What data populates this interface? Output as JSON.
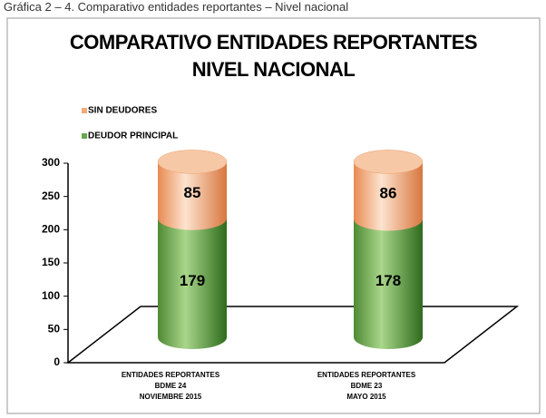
{
  "caption": "Gráfica 2 – 4. Comparativo entidades reportantes – Nivel nacional",
  "chart_data": {
    "type": "stacked_cylinder",
    "title": "COMPARATIVO ENTIDADES REPORTANTES\nNIVEL NACIONAL",
    "categories": [
      "ENTIDADES REPORTANTES\nBDME 24\nNOVIEMBRE 2015",
      "ENTIDADES REPORTANTES\nBDME 23\nMAYO 2015"
    ],
    "series": [
      {
        "name": "DEUDOR PRINCIPAL",
        "color": "#6aa84f",
        "values": [
          179,
          178
        ]
      },
      {
        "name": "SIN DEUDORES",
        "color": "#f4a979",
        "values": [
          85,
          86
        ]
      }
    ],
    "ylim": [
      0,
      300
    ],
    "yticks": [
      0,
      50,
      100,
      150,
      200,
      250,
      300
    ]
  }
}
